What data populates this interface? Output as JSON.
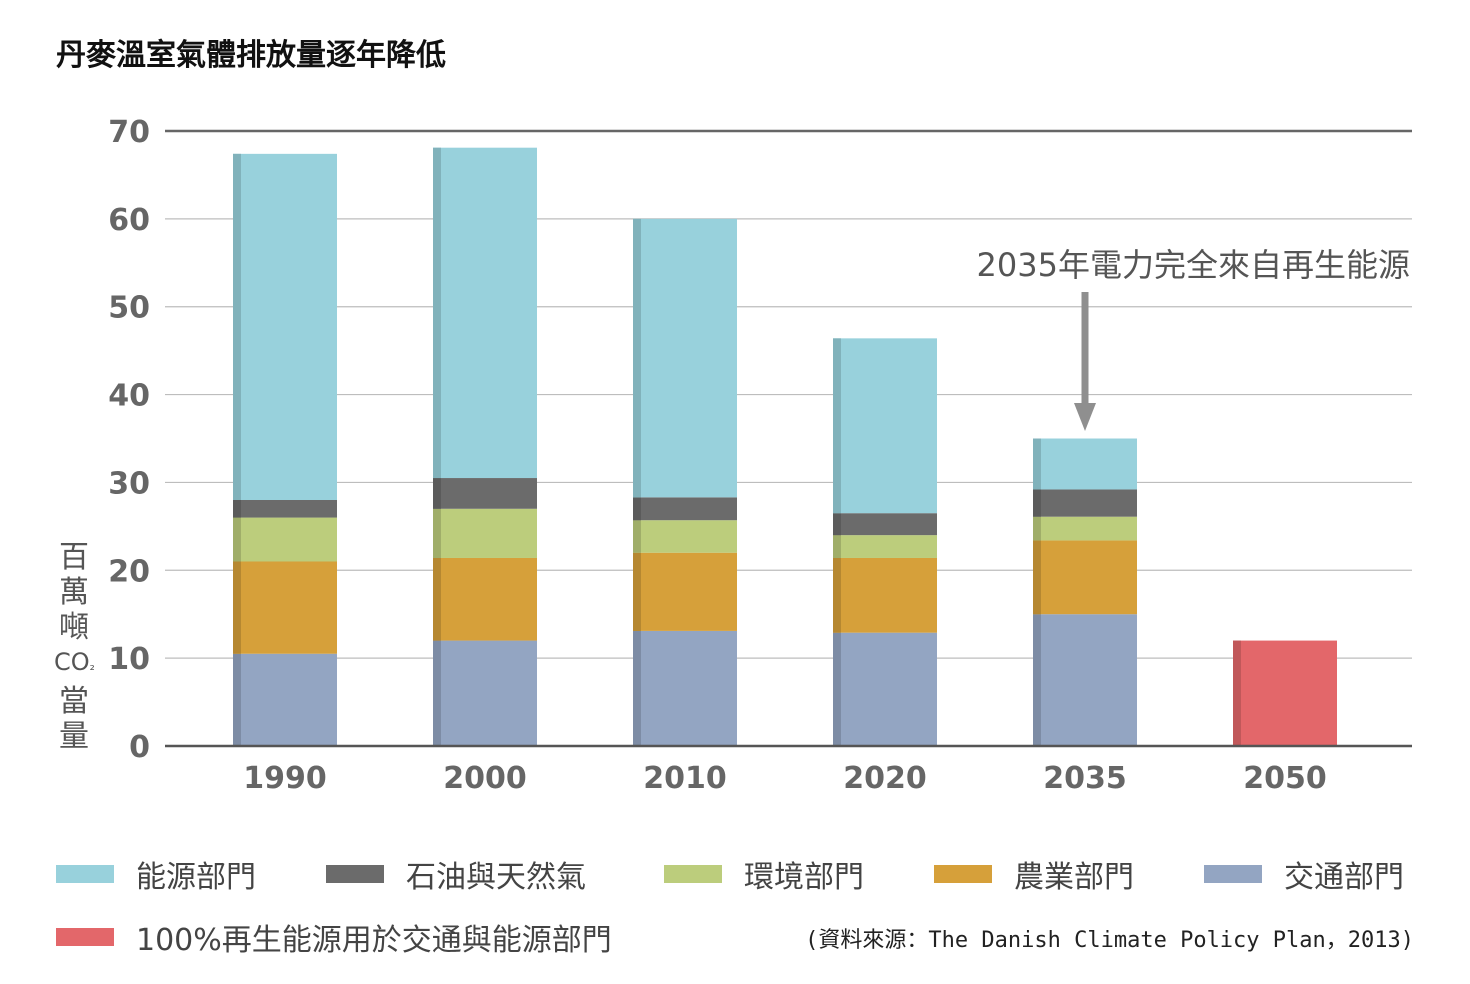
{
  "chart_data": {
    "type": "bar",
    "stacked": true,
    "title": "丹麥溫室氣體排放量逐年降低",
    "ylabel": "百萬噸CO₂當量",
    "ylabel_chars": [
      "百",
      "萬",
      "噸",
      "CO₂",
      "當",
      "量"
    ],
    "ylim": [
      0,
      70
    ],
    "yticks": [
      0,
      10,
      20,
      30,
      40,
      50,
      60,
      70
    ],
    "grid": true,
    "legend_position": "bottom",
    "categories": [
      "1990",
      "2000",
      "2010",
      "2020",
      "2035",
      "2050"
    ],
    "series": [
      {
        "name": "交通部門",
        "color": "#93a5c2",
        "values": [
          10.5,
          12.0,
          13.1,
          12.9,
          15.0,
          0
        ]
      },
      {
        "name": "農業部門",
        "color": "#d6a03a",
        "values": [
          10.5,
          9.4,
          8.9,
          8.5,
          8.4,
          0
        ]
      },
      {
        "name": "環境部門",
        "color": "#bccd7c",
        "values": [
          5.0,
          5.6,
          3.7,
          2.6,
          2.7,
          0
        ]
      },
      {
        "name": "石油與天然氣",
        "color": "#6b6b6b",
        "values": [
          2.0,
          3.5,
          2.6,
          2.5,
          3.1,
          0
        ]
      },
      {
        "name": "能源部門",
        "color": "#98d1dc",
        "values": [
          39.4,
          37.6,
          31.7,
          19.9,
          5.8,
          0
        ]
      },
      {
        "name": "100%再生能源用於交通與能源部門",
        "color": "#e3676a",
        "values": [
          0,
          0,
          0,
          0,
          0,
          12.0
        ]
      }
    ],
    "annotations": [
      {
        "text": "2035年電力完全來自再生能源",
        "category": "2035",
        "type": "arrow-down"
      }
    ],
    "source": "(資料來源：The Danish Climate Policy Plan，2013)"
  }
}
